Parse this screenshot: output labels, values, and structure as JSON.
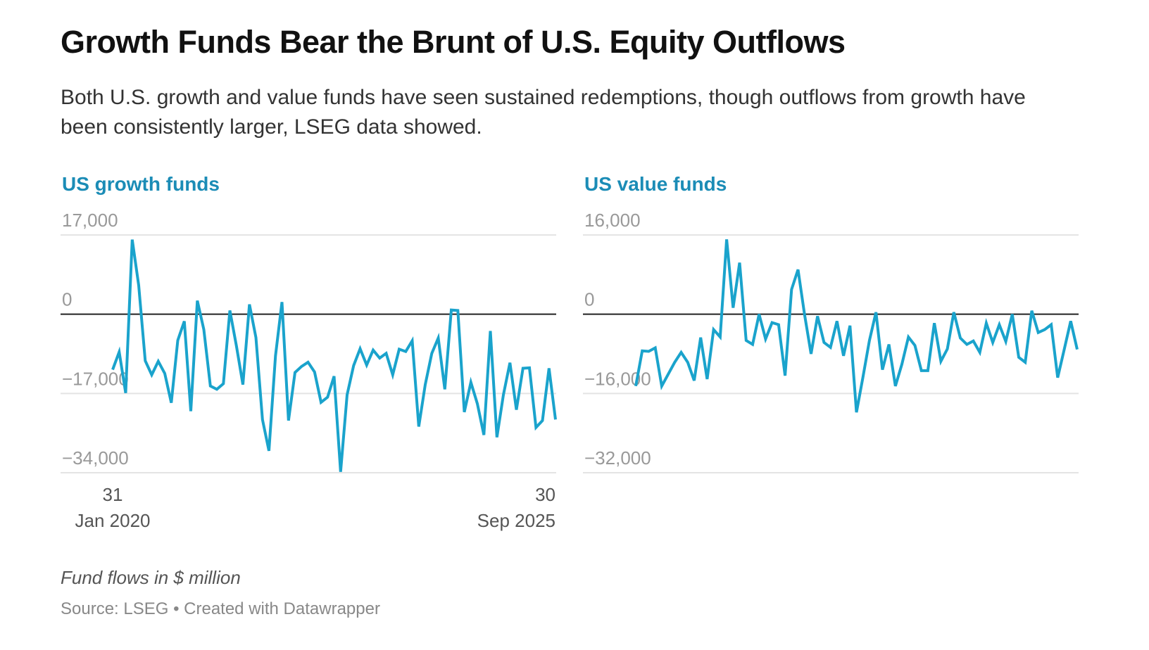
{
  "header": {
    "title": "Growth Funds Bear the Brunt of U.S. Equity Outflows",
    "subtitle": "Both U.S. growth and value funds have seen sustained redemptions, though outflows from growth have been consistently larger, LSEG data showed."
  },
  "footer": {
    "note": "Fund flows in $ million",
    "source": "Source: LSEG • Created with Datawrapper"
  },
  "colors": {
    "line": "#1aa3cc",
    "panel_title": "#1b8cb6",
    "zero_line": "#222222",
    "grid": "#e4e4e4"
  },
  "chart_data": [
    {
      "type": "line",
      "title": "US growth funds",
      "xlabel": "",
      "ylabel": "Fund flows in $ million",
      "ylim": [
        -34000,
        17000
      ],
      "yticks": [
        17000,
        0,
        -17000,
        -34000
      ],
      "ytick_labels": [
        "17,000",
        "0",
        "−17,000",
        "−34,000"
      ],
      "x_start_label": [
        "31",
        "Jan 2020"
      ],
      "x_end_label": [
        "30",
        "Sep 2025"
      ],
      "grid": true,
      "x_range": [
        "2020-01-31",
        "2025-09-30"
      ],
      "frequency": "monthly",
      "series": [
        {
          "name": "US growth funds",
          "values": [
            -11900,
            -8100,
            -16900,
            16000,
            6200,
            -10000,
            -13000,
            -10100,
            -12700,
            -19000,
            -5600,
            -1500,
            -20800,
            2900,
            -3300,
            -15400,
            -16100,
            -14900,
            800,
            -6800,
            -15100,
            2100,
            -5000,
            -22600,
            -29300,
            -8900,
            2600,
            -22800,
            -12500,
            -11200,
            -10300,
            -12400,
            -18900,
            -17800,
            -13300,
            -33800,
            -17300,
            -11000,
            -7400,
            -10900,
            -7700,
            -9400,
            -8400,
            -13000,
            -7500,
            -8000,
            -5700,
            -24100,
            -15100,
            -8400,
            -5100,
            -16100,
            900,
            800,
            -21000,
            -14600,
            -19200,
            -25900,
            -3600,
            -26400,
            -17300,
            -10400,
            -20500,
            -11600,
            -11500,
            -24300,
            -22800,
            -11600,
            -22600
          ]
        }
      ]
    },
    {
      "type": "line",
      "title": "US value funds",
      "xlabel": "",
      "ylabel": "Fund flows in $ million",
      "ylim": [
        -32000,
        16000
      ],
      "yticks": [
        16000,
        0,
        -16000,
        -32000
      ],
      "ytick_labels": [
        "16,000",
        "0",
        "−16,000",
        "−32,000"
      ],
      "grid": true,
      "x_range": [
        "2020-01-31",
        "2025-09-30"
      ],
      "frequency": "monthly",
      "series": [
        {
          "name": "US value funds",
          "values": [
            -14500,
            -7400,
            -7500,
            -6800,
            -14500,
            -12100,
            -9700,
            -7700,
            -9700,
            -13400,
            -4700,
            -13100,
            -3100,
            -4600,
            15100,
            1300,
            10400,
            -5300,
            -6100,
            0,
            -5000,
            -1700,
            -2100,
            -12400,
            5000,
            9000,
            0,
            -8000,
            -400,
            -5700,
            -6700,
            -1400,
            -8400,
            -2300,
            -19800,
            -12700,
            -5300,
            400,
            -11200,
            -6100,
            -14500,
            -10100,
            -4600,
            -6300,
            -11400,
            -11400,
            -1800,
            -9500,
            -7000,
            400,
            -4800,
            -6100,
            -5400,
            -7700,
            -1800,
            -5700,
            -2100,
            -5500,
            0,
            -8700,
            -9700,
            700,
            -3700,
            -3100,
            -2100,
            -12800,
            -7100,
            -1400,
            -7100
          ]
        }
      ]
    }
  ]
}
